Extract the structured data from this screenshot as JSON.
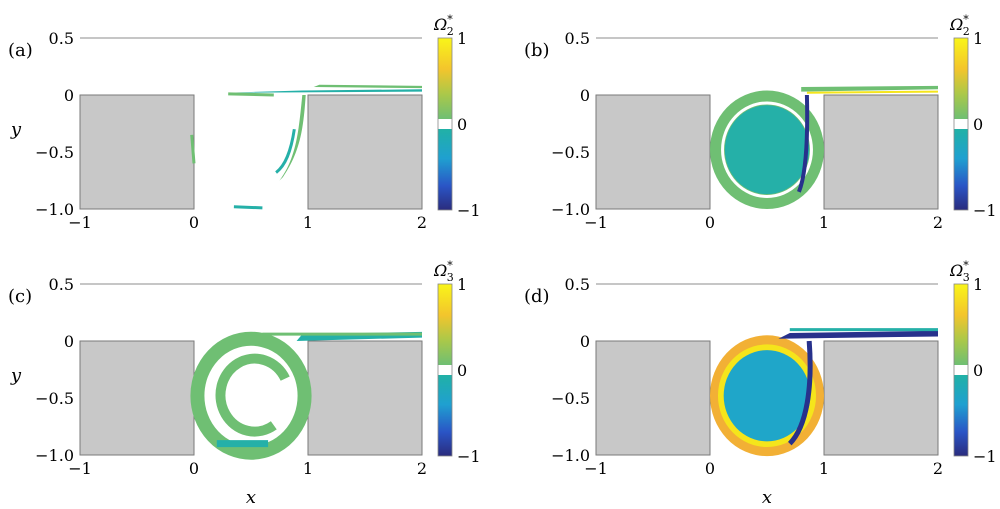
{
  "chart_data": [
    {
      "type": "heatmap",
      "panel_label": "(a)",
      "xlabel": "",
      "ylabel": "y",
      "xlim": [
        -1,
        2
      ],
      "ylim": [
        -1.0,
        0.5
      ],
      "x_ticks": [
        "−1",
        "0",
        "1",
        "2"
      ],
      "y_ticks": [
        "0.5",
        "0",
        "−0.5",
        "−1.0"
      ],
      "colorbar": {
        "title": "Ω",
        "sub": "2",
        "ticks": [
          "1",
          "0",
          "−1"
        ],
        "range": [
          -1,
          1
        ]
      },
      "structure": "thin-filaments"
    },
    {
      "type": "heatmap",
      "panel_label": "(b)",
      "xlabel": "",
      "ylabel": "",
      "xlim": [
        -1,
        2
      ],
      "ylim": [
        -1.0,
        0.5
      ],
      "x_ticks": [
        "−1",
        "0",
        "1",
        "2"
      ],
      "y_ticks": [
        "0.5",
        "0",
        "−0.5",
        "−1.0"
      ],
      "colorbar": {
        "title": "Ω",
        "sub": "2",
        "ticks": [
          "1",
          "0",
          "−1"
        ],
        "range": [
          -1,
          1
        ]
      },
      "structure": "filled-vortex"
    },
    {
      "type": "heatmap",
      "panel_label": "(c)",
      "xlabel": "x",
      "ylabel": "y",
      "xlim": [
        -1,
        2
      ],
      "ylim": [
        -1.0,
        0.5
      ],
      "x_ticks": [
        "−1",
        "0",
        "1",
        "2"
      ],
      "y_ticks": [
        "0.5",
        "0",
        "−0.5",
        "−1.0"
      ],
      "colorbar": {
        "title": "Ω",
        "sub": "3",
        "ticks": [
          "1",
          "0",
          "−1"
        ],
        "range": [
          -1,
          1
        ]
      },
      "structure": "spiral-ring"
    },
    {
      "type": "heatmap",
      "panel_label": "(d)",
      "xlabel": "x",
      "ylabel": "",
      "xlim": [
        -1,
        2
      ],
      "ylim": [
        -1.0,
        0.5
      ],
      "x_ticks": [
        "−1",
        "0",
        "1",
        "2"
      ],
      "y_ticks": [
        "0.5",
        "0",
        "−0.5",
        "−1.0"
      ],
      "colorbar": {
        "title": "Ω",
        "sub": "3",
        "ticks": [
          "1",
          "0",
          "−1"
        ],
        "range": [
          -1,
          1
        ]
      },
      "structure": "filled-vortex-yellow-ring"
    }
  ],
  "colors": {
    "wall": "#c8c8c8",
    "wall_edge": "#7a7a7a",
    "axis_line": "#b4b4b4",
    "green": "#6fbf73",
    "teal": "#25b0a8",
    "cyan": "#1fa6c9",
    "navy": "#27318c",
    "yellow": "#f5e51b",
    "orange": "#f2b035"
  }
}
